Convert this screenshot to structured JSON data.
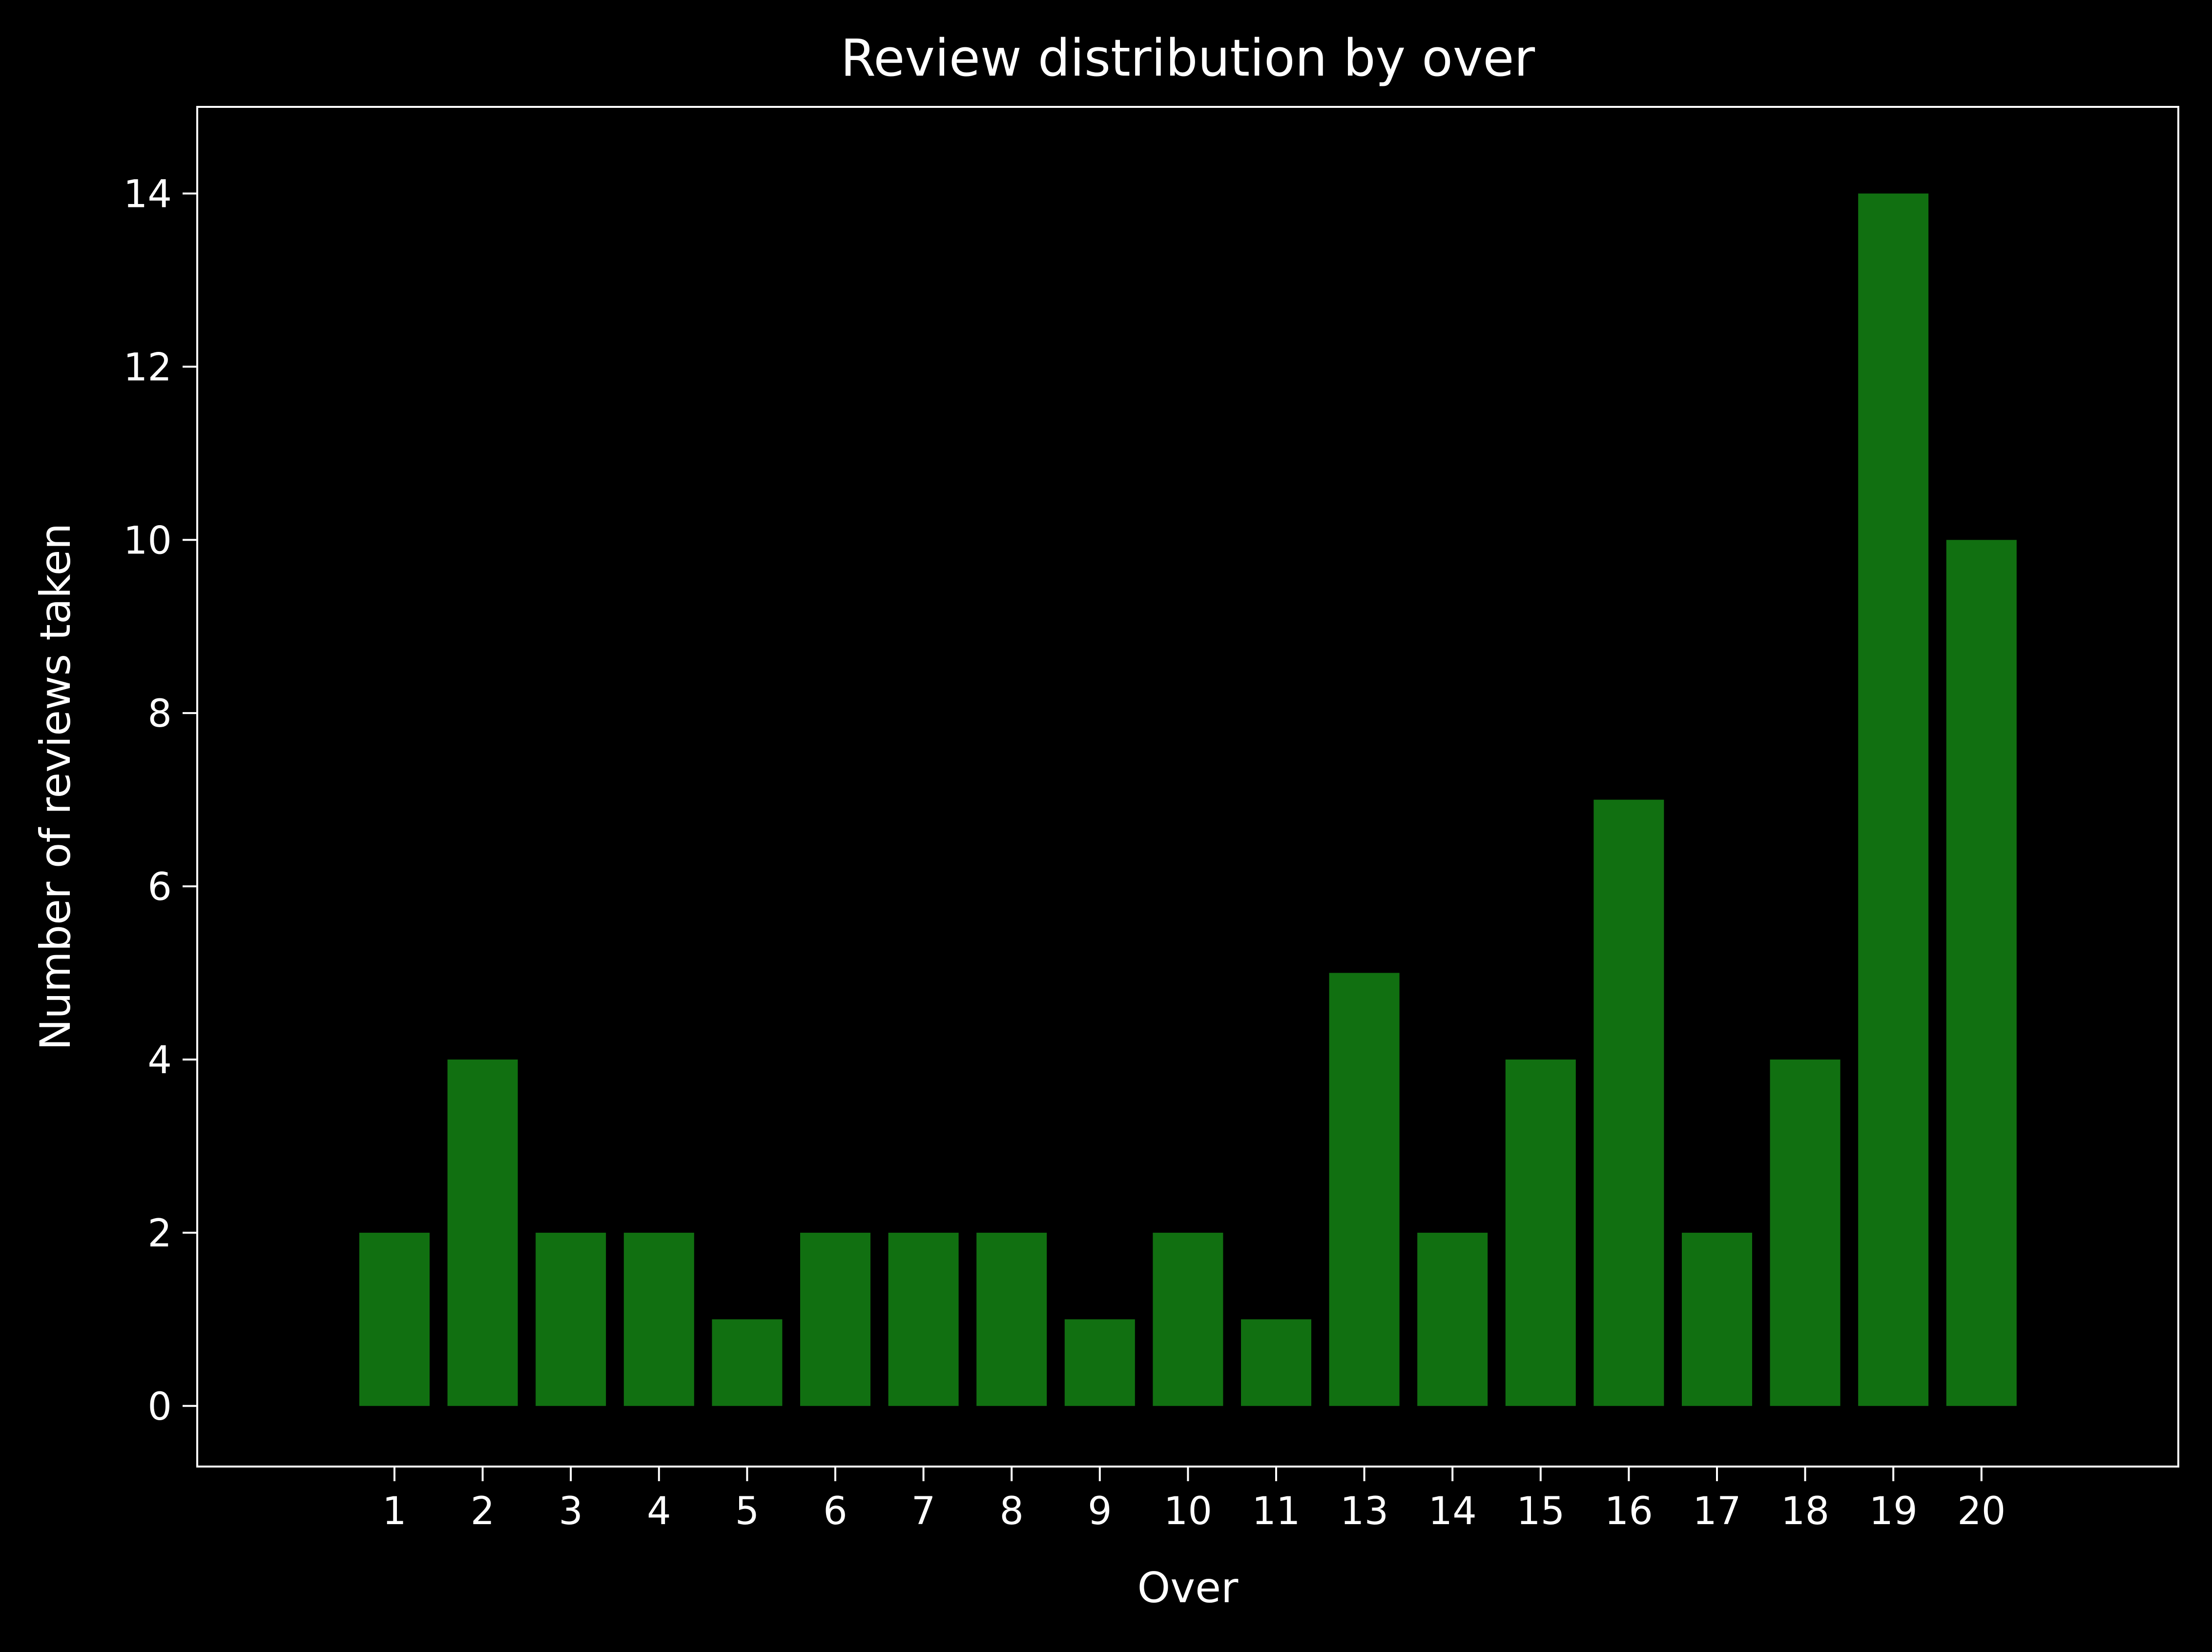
{
  "chart_data": {
    "type": "bar",
    "title": "Review distribution by over",
    "xlabel": "Over",
    "ylabel": "Number of reviews taken",
    "categories": [
      "1",
      "2",
      "3",
      "4",
      "5",
      "6",
      "7",
      "8",
      "9",
      "10",
      "11",
      "13",
      "14",
      "15",
      "16",
      "17",
      "18",
      "19",
      "20"
    ],
    "values": [
      2,
      4,
      2,
      2,
      1,
      2,
      2,
      2,
      1,
      2,
      1,
      5,
      2,
      4,
      7,
      2,
      4,
      14,
      10
    ],
    "ylim": [
      -0.7,
      15
    ],
    "yticks": [
      0,
      2,
      4,
      6,
      8,
      10,
      12,
      14
    ],
    "grid": false,
    "legend": "none",
    "colors": {
      "background": "#000000",
      "bar": "#117011",
      "axes": "#ffffff",
      "text": "#ffffff"
    }
  }
}
